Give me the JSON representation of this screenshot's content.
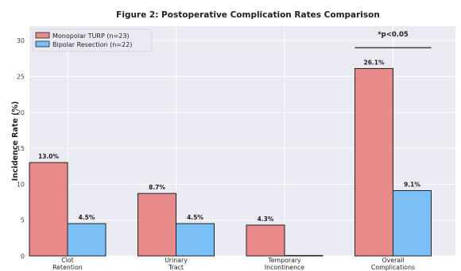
{
  "chart_data": {
    "type": "bar",
    "title": "Figure 2: Postoperative Complication Rates Comparison",
    "xlabel": "",
    "ylabel": "Incidence Rate (%)",
    "ylim": [
      0,
      32
    ],
    "yticks": [
      0,
      5,
      10,
      15,
      20,
      25,
      30
    ],
    "grid": true,
    "legend_position": "top-left",
    "categories": [
      [
        "Clot",
        "Retention"
      ],
      [
        "Urinary",
        "Tract"
      ],
      [
        "Temporary",
        "Incontinence"
      ],
      [
        "Overall",
        "Complications"
      ]
    ],
    "series": [
      {
        "name": "Monopolar TURP (n=23)",
        "color": "#e88a8a",
        "values": [
          13.0,
          8.7,
          4.3,
          26.1
        ],
        "labels": [
          "13.0%",
          "8.7%",
          "4.3%",
          "26.1%"
        ]
      },
      {
        "name": "Bipolar Resection (n=22)",
        "color": "#7abff5",
        "values": [
          4.5,
          4.5,
          0.0,
          9.1
        ],
        "labels": [
          "4.5%",
          "4.5%",
          "",
          "9.1%"
        ]
      }
    ],
    "annotation": {
      "text": "*p<0.05",
      "category_index": 3,
      "y": 29
    }
  }
}
